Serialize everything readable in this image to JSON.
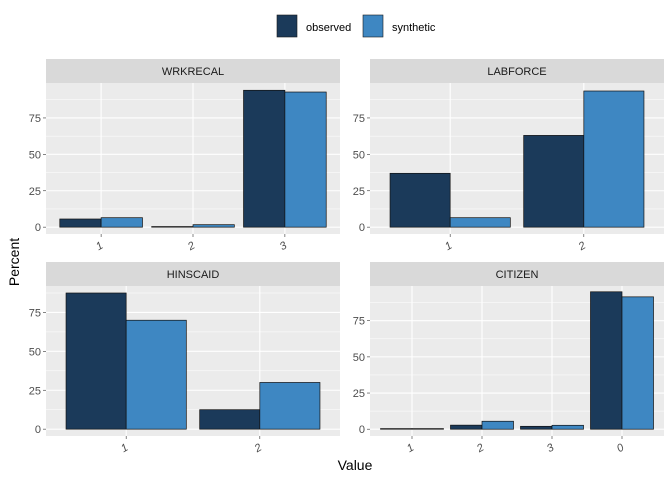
{
  "colors": {
    "observed": "#1b3a5a",
    "synthetic": "#3e87c2",
    "panel_bg": "#ebebeb",
    "strip_bg": "#d9d9d9",
    "grid": "#ffffff"
  },
  "legend": {
    "entries": [
      {
        "label": "observed",
        "color": "#1b3a5a"
      },
      {
        "label": "synthetic",
        "color": "#3e87c2"
      }
    ],
    "position": "top"
  },
  "chart_data": [
    {
      "type": "bar",
      "title": "WRKRECAL",
      "categories": [
        "1",
        "2",
        "3"
      ],
      "ylim": [
        -4.7,
        99
      ],
      "yticks": [
        0,
        25,
        50,
        75
      ],
      "series": [
        {
          "name": "observed",
          "values": [
            5.6,
            0.3,
            94
          ]
        },
        {
          "name": "synthetic",
          "values": [
            6.5,
            1.7,
            92.8
          ]
        }
      ]
    },
    {
      "type": "bar",
      "title": "LABFORCE",
      "categories": [
        "1",
        "2"
      ],
      "ylim": [
        -4.7,
        99
      ],
      "yticks": [
        0,
        25,
        50,
        75
      ],
      "series": [
        {
          "name": "observed",
          "values": [
            37,
            63
          ]
        },
        {
          "name": "synthetic",
          "values": [
            6.5,
            93.5
          ]
        }
      ]
    },
    {
      "type": "bar",
      "title": "HINSCAID",
      "categories": [
        "1",
        "2"
      ],
      "ylim": [
        -4.4,
        92
      ],
      "yticks": [
        0,
        25,
        50,
        75
      ],
      "series": [
        {
          "name": "observed",
          "values": [
            87.5,
            12.5
          ]
        },
        {
          "name": "synthetic",
          "values": [
            70,
            30
          ]
        }
      ]
    },
    {
      "type": "bar",
      "title": "CITIZEN",
      "categories": [
        "1",
        "2",
        "3",
        "0"
      ],
      "ylim": [
        -4.7,
        99
      ],
      "yticks": [
        0,
        25,
        50,
        75
      ],
      "series": [
        {
          "name": "observed",
          "values": [
            0.4,
            2.8,
            2,
            95
          ]
        },
        {
          "name": "synthetic",
          "values": [
            0.3,
            5.5,
            2.7,
            91.5
          ]
        }
      ]
    }
  ],
  "axes": {
    "xlabel": "Value",
    "ylabel": "Percent"
  }
}
